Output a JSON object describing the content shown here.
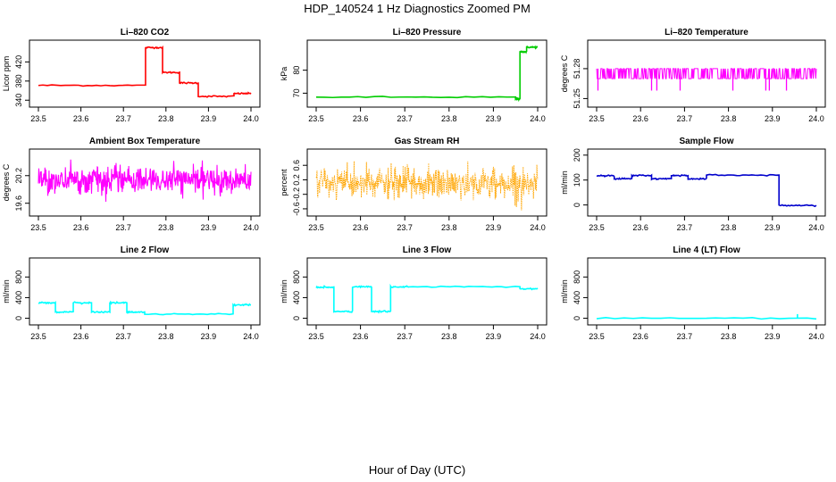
{
  "figure": {
    "title": "HDP_140524  1 Hz Diagnostics Zoomed PM",
    "xlabel": "Hour of Day (UTC)"
  },
  "chart_data": [
    {
      "type": "line",
      "title": "Li–820 CO2",
      "ylabel": "Licor ppm",
      "color": "#ff0000",
      "xlim": [
        23.5,
        24.0
      ],
      "ylim": [
        333,
        458
      ],
      "xticks": [
        "23.5",
        "23.6",
        "23.7",
        "23.8",
        "23.9",
        "24.0"
      ],
      "yticks": [
        340,
        380,
        420
      ],
      "segments": [
        [
          23.5,
          23.752,
          371
        ],
        [
          23.752,
          23.792,
          450
        ],
        [
          23.792,
          23.832,
          398
        ],
        [
          23.832,
          23.876,
          376
        ],
        [
          23.876,
          23.96,
          348
        ],
        [
          23.96,
          24.0,
          354
        ]
      ]
    },
    {
      "type": "line",
      "title": "Li–820 Pressure",
      "ylabel": "kPa",
      "color": "#00cc00",
      "xlim": [
        23.5,
        24.0
      ],
      "ylim": [
        65.5,
        91.5
      ],
      "xticks": [
        "23.5",
        "23.6",
        "23.7",
        "23.8",
        "23.9",
        "24.0"
      ],
      "yticks": [
        70,
        80
      ],
      "segments": [
        [
          23.5,
          23.95,
          68.3
        ],
        [
          23.95,
          23.96,
          67.5
        ],
        [
          23.96,
          23.975,
          88
        ],
        [
          23.975,
          24.0,
          90
        ]
      ]
    },
    {
      "type": "line",
      "title": "Li–820 Temperature",
      "ylabel": "degrees C",
      "color": "#ff00ff",
      "xlim": [
        23.5,
        24.0
      ],
      "ylim": [
        51.245,
        51.305
      ],
      "xticks": [
        "23.5",
        "23.6",
        "23.7",
        "23.8",
        "23.9",
        "24.0"
      ],
      "yticks": [
        51.25,
        51.28
      ],
      "levels": [
        51.26,
        51.27,
        51.28
      ],
      "dips": [
        23.503,
        23.625,
        23.637,
        23.69,
        23.81,
        23.885,
        23.893,
        23.932
      ]
    },
    {
      "type": "line",
      "title": "Ambient Box Temperature",
      "ylabel": "degrees C",
      "color": "#ff00ff",
      "xlim": [
        23.5,
        24.0
      ],
      "ylim": [
        19.4,
        20.7
      ],
      "xticks": [
        "23.5",
        "23.6",
        "23.7",
        "23.8",
        "23.9",
        "24.0"
      ],
      "yticks": [
        19.6,
        20.2
      ],
      "mean": 20.1,
      "noise_sd": 0.14
    },
    {
      "type": "line",
      "title": "Gas Stream RH",
      "ylabel": "percent",
      "color": "#ffa500",
      "xlim": [
        23.5,
        24.0
      ],
      "ylim": [
        -0.7,
        0.95
      ],
      "xticks": [
        "23.5",
        "23.6",
        "23.7",
        "23.8",
        "23.9",
        "24.0"
      ],
      "yticks": [
        -0.6,
        -0.2,
        0.2,
        0.6
      ],
      "mean": 0.1,
      "noise_sd": 0.22
    },
    {
      "type": "line",
      "title": "Sample Flow",
      "ylabel": "ml/min",
      "color": "#0000cc",
      "xlim": [
        23.5,
        24.0
      ],
      "ylim": [
        -30,
        210
      ],
      "xticks": [
        "23.5",
        "23.6",
        "23.7",
        "23.8",
        "23.9",
        "24.0"
      ],
      "yticks": [
        0,
        100,
        200
      ],
      "segments": [
        [
          23.5,
          23.54,
          118
        ],
        [
          23.54,
          23.58,
          105
        ],
        [
          23.58,
          23.625,
          118
        ],
        [
          23.625,
          23.67,
          105
        ],
        [
          23.67,
          23.708,
          118
        ],
        [
          23.708,
          23.75,
          105
        ],
        [
          23.75,
          23.915,
          120
        ],
        [
          23.915,
          24.0,
          -2
        ]
      ]
    },
    {
      "type": "line",
      "title": "Line 2 Flow",
      "ylabel": "ml/min",
      "color": "#00ffff",
      "xlim": [
        23.5,
        24.0
      ],
      "ylim": [
        -60,
        1100
      ],
      "xticks": [
        "23.5",
        "23.6",
        "23.7",
        "23.8",
        "23.9",
        "24.0"
      ],
      "yticks": [
        0,
        400,
        800
      ],
      "segments": [
        [
          23.5,
          23.54,
          300
        ],
        [
          23.54,
          23.582,
          120
        ],
        [
          23.582,
          23.625,
          300
        ],
        [
          23.625,
          23.668,
          120
        ],
        [
          23.668,
          23.708,
          300
        ],
        [
          23.708,
          23.75,
          120
        ],
        [
          23.75,
          23.958,
          80
        ],
        [
          23.958,
          24.0,
          260
        ]
      ]
    },
    {
      "type": "line",
      "title": "Line 3 Flow",
      "ylabel": "ml/min",
      "color": "#00ffff",
      "xlim": [
        23.5,
        24.0
      ],
      "ylim": [
        -60,
        1100
      ],
      "xticks": [
        "23.5",
        "23.6",
        "23.7",
        "23.8",
        "23.9",
        "24.0"
      ],
      "yticks": [
        0,
        400,
        800
      ],
      "segments": [
        [
          23.5,
          23.54,
          600
        ],
        [
          23.54,
          23.582,
          130
        ],
        [
          23.582,
          23.625,
          610
        ],
        [
          23.625,
          23.668,
          130
        ],
        [
          23.668,
          23.708,
          610
        ],
        [
          23.708,
          23.96,
          610
        ],
        [
          23.96,
          24.0,
          570
        ]
      ]
    },
    {
      "type": "line",
      "title": "Line 4 (LT) Flow",
      "ylabel": "ml/min",
      "color": "#00ffff",
      "xlim": [
        23.5,
        24.0
      ],
      "ylim": [
        -60,
        1100
      ],
      "xticks": [
        "23.5",
        "23.6",
        "23.7",
        "23.8",
        "23.9",
        "24.0"
      ],
      "yticks": [
        0,
        400,
        800
      ],
      "segments": [
        [
          23.5,
          24.0,
          0
        ]
      ],
      "spike": [
        23.957,
        80
      ]
    }
  ]
}
